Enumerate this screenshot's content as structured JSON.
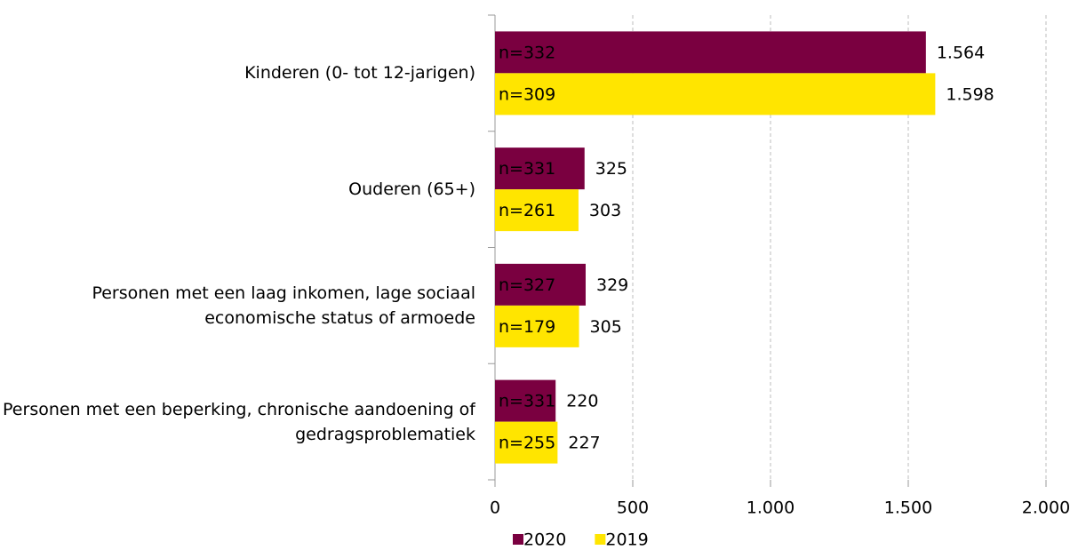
{
  "chart_data": {
    "type": "hbar",
    "categories": [
      "Kinderen (0- tot 12-jarigen)",
      "Ouderen (65+)",
      "Personen met een laag inkomen, lage sociaal economische status of armoede",
      "Personen met een beperking, chronische aandoening of gedragsproblematiek"
    ],
    "series": [
      {
        "name": "2020",
        "color": "#7a0040",
        "values": [
          1564,
          325,
          329,
          220
        ],
        "value_labels": [
          "1.564",
          "325",
          "329",
          "220"
        ],
        "sample_labels": [
          "n=332",
          "n=331",
          "n=327",
          "n=331"
        ],
        "sample_label_color": "#ffffff"
      },
      {
        "name": "2019",
        "color": "#ffe500",
        "values": [
          1598,
          303,
          305,
          227
        ],
        "value_labels": [
          "1.598",
          "303",
          "305",
          "227"
        ],
        "sample_labels": [
          "n=309",
          "n=261",
          "n=179",
          "n=255"
        ],
        "sample_label_color": "#000000"
      }
    ],
    "xlim": [
      0,
      2000
    ],
    "xticks": [
      0,
      500,
      {
        "value": 1000,
        "label": "1.000"
      },
      {
        "value": 1500,
        "label": "1.500"
      },
      {
        "value": 2000,
        "label": "2.000"
      }
    ],
    "grid": true,
    "legend": "bottom"
  }
}
